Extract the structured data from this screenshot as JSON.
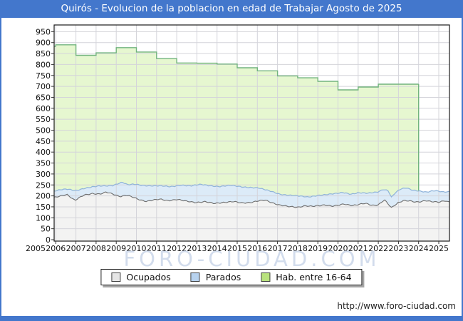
{
  "title": "Quirós - Evolucion de la poblacion en edad de Trabajar Agosto de 2025",
  "watermark": {
    "text": "FORO-CIUDAD.COM"
  },
  "footer": {
    "url": "http://www.foro-ciudad.com"
  },
  "colors": {
    "accent": "#4377cc",
    "grid": "#d4d4da",
    "plot_border": "#1a1a1a",
    "green_fill": "#e6f7d0",
    "green_line": "#72b47e",
    "blue_fill": "#dcebf8",
    "blue_line": "#8fb3da",
    "gray_fill": "#f3f3f2",
    "gray_line": "#6e6e6e",
    "legend_swatch_ocupados": "#e6e6e6",
    "legend_swatch_parados": "#b7d2ee",
    "legend_swatch_hab": "#b9e27e"
  },
  "legend": [
    {
      "id": "ocupados",
      "label": "Ocupados",
      "swatch": "#e6e6e6"
    },
    {
      "id": "parados",
      "label": "Parados",
      "swatch": "#b7d2ee"
    },
    {
      "id": "hab-16-64",
      "label": "Hab. entre 16-64",
      "swatch": "#b9e27e"
    }
  ],
  "chart_data": {
    "type": "area",
    "title": "Quirós - Evolucion de la poblacion en edad de Trabajar Agosto de 2025",
    "xlabel": "",
    "ylabel": "",
    "grid": true,
    "legend_position": "bottom-center",
    "x_ticks": [
      2005,
      2006,
      2007,
      2008,
      2009,
      2010,
      2011,
      2012,
      2013,
      2014,
      2015,
      2016,
      2017,
      2018,
      2019,
      2020,
      2021,
      2022,
      2023,
      2024,
      2025
    ],
    "y_ticks": [
      0,
      50,
      100,
      150,
      200,
      250,
      300,
      350,
      400,
      450,
      500,
      550,
      600,
      650,
      700,
      750,
      800,
      850,
      900,
      950
    ],
    "xlim": [
      2005.9,
      2025.55
    ],
    "ylim": [
      0,
      980
    ],
    "series": [
      {
        "name": "Hab. entre 16-64",
        "style": "yearly-step",
        "note": "annual values; area ends (drops to baseline) at start of 2024",
        "ends_at": 2024.0,
        "points": [
          [
            2005,
            883
          ],
          [
            2006,
            890
          ],
          [
            2007,
            842
          ],
          [
            2008,
            853
          ],
          [
            2009,
            877
          ],
          [
            2010,
            857
          ],
          [
            2011,
            827
          ],
          [
            2012,
            807
          ],
          [
            2013,
            806
          ],
          [
            2014,
            802
          ],
          [
            2015,
            785
          ],
          [
            2016,
            771
          ],
          [
            2017,
            748
          ],
          [
            2018,
            739
          ],
          [
            2019,
            723
          ],
          [
            2020,
            684
          ],
          [
            2021,
            697
          ],
          [
            2022,
            710
          ],
          [
            2023,
            710
          ]
        ]
      },
      {
        "name": "Parados",
        "style": "monthly-band-top",
        "note": "top edge of blue band (Ocupados+Parados), monthly wiggle; anchor points [year, value]",
        "anchors": [
          [
            2005.85,
            220
          ],
          [
            2006.3,
            228
          ],
          [
            2006.6,
            231
          ],
          [
            2006.95,
            225
          ],
          [
            2007.4,
            234
          ],
          [
            2007.75,
            239
          ],
          [
            2008.2,
            245
          ],
          [
            2008.8,
            248
          ],
          [
            2009.3,
            262
          ],
          [
            2009.55,
            250
          ],
          [
            2009.95,
            253
          ],
          [
            2010.3,
            249
          ],
          [
            2010.6,
            247
          ],
          [
            2011.1,
            245
          ],
          [
            2011.7,
            242
          ],
          [
            2012.2,
            250
          ],
          [
            2012.7,
            245
          ],
          [
            2013.2,
            252
          ],
          [
            2013.7,
            247
          ],
          [
            2014.1,
            243
          ],
          [
            2014.7,
            247
          ],
          [
            2015.2,
            242
          ],
          [
            2015.7,
            239
          ],
          [
            2016.05,
            236
          ],
          [
            2016.4,
            227
          ],
          [
            2016.75,
            219
          ],
          [
            2017.1,
            209
          ],
          [
            2017.5,
            204
          ],
          [
            2018.0,
            199
          ],
          [
            2018.5,
            195
          ],
          [
            2019.0,
            203
          ],
          [
            2019.5,
            206
          ],
          [
            2019.9,
            210
          ],
          [
            2020.25,
            216
          ],
          [
            2020.65,
            209
          ],
          [
            2021.0,
            214
          ],
          [
            2021.5,
            211
          ],
          [
            2022.0,
            219
          ],
          [
            2022.25,
            231
          ],
          [
            2022.5,
            224
          ],
          [
            2022.65,
            194
          ],
          [
            2022.85,
            214
          ],
          [
            2023.1,
            230
          ],
          [
            2023.4,
            236
          ],
          [
            2023.7,
            227
          ],
          [
            2024.0,
            224
          ],
          [
            2024.4,
            217
          ],
          [
            2024.8,
            223
          ],
          [
            2025.2,
            218
          ],
          [
            2025.55,
            220
          ]
        ]
      },
      {
        "name": "Ocupados",
        "style": "monthly-line",
        "note": "top edge of gray area, monthly wiggle; anchor points [year, value]",
        "anchors": [
          [
            2005.85,
            190
          ],
          [
            2006.2,
            198
          ],
          [
            2006.55,
            208
          ],
          [
            2006.95,
            179
          ],
          [
            2007.4,
            203
          ],
          [
            2007.8,
            212
          ],
          [
            2008.2,
            208
          ],
          [
            2008.5,
            216
          ],
          [
            2008.85,
            208
          ],
          [
            2009.2,
            198
          ],
          [
            2009.5,
            203
          ],
          [
            2009.8,
            194
          ],
          [
            2010.1,
            184
          ],
          [
            2010.5,
            176
          ],
          [
            2010.85,
            181
          ],
          [
            2011.2,
            184
          ],
          [
            2011.55,
            179
          ],
          [
            2012.0,
            184
          ],
          [
            2012.4,
            176
          ],
          [
            2012.9,
            171
          ],
          [
            2013.4,
            173
          ],
          [
            2013.85,
            165
          ],
          [
            2014.3,
            171
          ],
          [
            2014.8,
            173
          ],
          [
            2015.2,
            168
          ],
          [
            2015.7,
            171
          ],
          [
            2016.1,
            177
          ],
          [
            2016.4,
            180
          ],
          [
            2016.75,
            169
          ],
          [
            2017.1,
            158
          ],
          [
            2017.5,
            151
          ],
          [
            2018.0,
            149
          ],
          [
            2018.35,
            155
          ],
          [
            2018.7,
            151
          ],
          [
            2019.05,
            155
          ],
          [
            2019.35,
            160
          ],
          [
            2019.7,
            153
          ],
          [
            2020.0,
            155
          ],
          [
            2020.3,
            163
          ],
          [
            2020.7,
            157
          ],
          [
            2021.0,
            160
          ],
          [
            2021.35,
            165
          ],
          [
            2021.7,
            157
          ],
          [
            2022.0,
            160
          ],
          [
            2022.3,
            182
          ],
          [
            2022.65,
            145
          ],
          [
            2023.0,
            170
          ],
          [
            2023.25,
            180
          ],
          [
            2023.55,
            177
          ],
          [
            2023.85,
            170
          ],
          [
            2024.1,
            173
          ],
          [
            2024.35,
            180
          ],
          [
            2024.65,
            175
          ],
          [
            2025.0,
            170
          ],
          [
            2025.3,
            177
          ],
          [
            2025.55,
            171
          ]
        ]
      }
    ]
  }
}
